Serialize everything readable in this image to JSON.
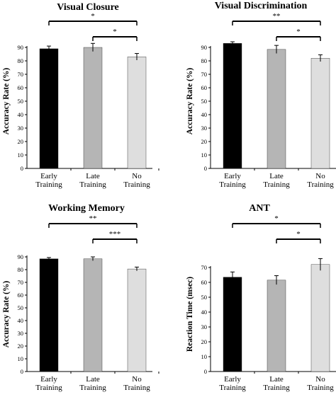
{
  "chart_data": [
    {
      "type": "bar",
      "title": "Visual Closure",
      "ylabel": "Accuracy Rate (%)",
      "ylim": [
        0,
        100
      ],
      "yticks": [
        0,
        10,
        20,
        30,
        40,
        50,
        60,
        70,
        80,
        90
      ],
      "categories": [
        "Early Training",
        "Late Training",
        "No Training"
      ],
      "category_lines": [
        [
          "Early",
          "Training"
        ],
        [
          "Late",
          "Training"
        ],
        [
          "No",
          "Training"
        ]
      ],
      "values": [
        89,
        90,
        83
      ],
      "errors": [
        2,
        3,
        2.5
      ],
      "colors": [
        "#000000",
        "#b5b5b5",
        "#dedede"
      ],
      "significance": [
        {
          "from": 0,
          "to": 2,
          "label": "*"
        },
        {
          "from": 1,
          "to": 2,
          "label": "*"
        }
      ]
    },
    {
      "type": "bar",
      "title": "Visual Discrimination",
      "ylabel": "Accuracy Rate (%)",
      "ylim": [
        0,
        100
      ],
      "yticks": [
        0,
        10,
        20,
        30,
        40,
        50,
        60,
        70,
        80,
        90
      ],
      "categories": [
        "Early Training",
        "Late Training",
        "No Training"
      ],
      "category_lines": [
        [
          "Early",
          "Training"
        ],
        [
          "Late",
          "Training"
        ],
        [
          "No",
          "Training"
        ]
      ],
      "values": [
        93,
        88.5,
        82
      ],
      "errors": [
        1.2,
        3,
        2.5
      ],
      "colors": [
        "#000000",
        "#b5b5b5",
        "#dedede"
      ],
      "significance": [
        {
          "from": 0,
          "to": 2,
          "label": "**"
        },
        {
          "from": 1,
          "to": 2,
          "label": "*"
        }
      ]
    },
    {
      "type": "bar",
      "title": "Working Memory",
      "ylabel": "Accuracy Rate (%)",
      "ylim": [
        0,
        90
      ],
      "yticks": [
        0,
        10,
        20,
        30,
        40,
        50,
        60,
        70,
        80,
        90
      ],
      "categories": [
        "Early Training",
        "Late Training",
        "No Training"
      ],
      "category_lines": [
        [
          "Early",
          "Training"
        ],
        [
          "Late",
          "Training"
        ],
        [
          "No",
          "Training"
        ]
      ],
      "values": [
        88.5,
        88.5,
        80.5
      ],
      "errors": [
        1,
        1.5,
        1.5
      ],
      "colors": [
        "#000000",
        "#b5b5b5",
        "#dedede"
      ],
      "significance": [
        {
          "from": 0,
          "to": 2,
          "label": "**"
        },
        {
          "from": 1,
          "to": 2,
          "label": "***"
        }
      ]
    },
    {
      "type": "bar",
      "title": "ANT",
      "ylabel": "Reaction Time (msec)",
      "ylim": [
        0,
        80
      ],
      "yticks": [
        0,
        10,
        20,
        30,
        40,
        50,
        60,
        70
      ],
      "categories": [
        "Early Training",
        "Late Training",
        "No Training"
      ],
      "category_lines": [
        [
          "Early",
          "Training"
        ],
        [
          "Late",
          "Training"
        ],
        [
          "No",
          "Training"
        ]
      ],
      "values": [
        63.5,
        61.5,
        72
      ],
      "errors": [
        3.5,
        3,
        4
      ],
      "colors": [
        "#000000",
        "#b5b5b5",
        "#dedede"
      ],
      "significance": [
        {
          "from": 0,
          "to": 2,
          "label": "*"
        },
        {
          "from": 1,
          "to": 2,
          "label": "*"
        }
      ]
    }
  ]
}
